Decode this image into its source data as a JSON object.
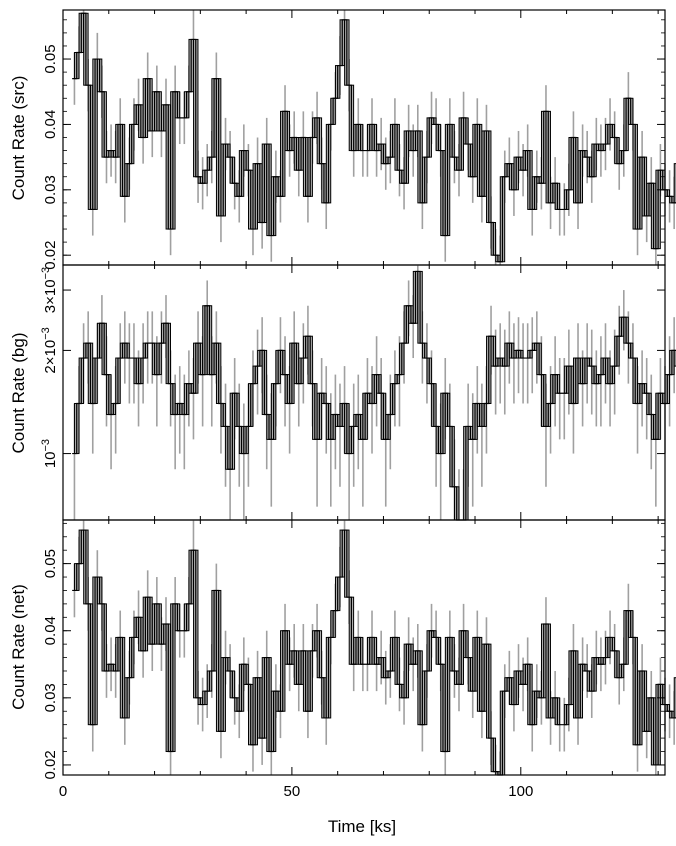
{
  "chart_data": [
    {
      "type": "line",
      "panel": "src",
      "ylabel": "Count Rate (src)",
      "xlabel": "",
      "xlim": [
        0,
        131.5
      ],
      "ylim": [
        0.0185,
        0.0575
      ],
      "y_scale": "linear",
      "yticks": [
        {
          "value": 0.02,
          "label": "0.02"
        },
        {
          "value": 0.03,
          "label": "0.03"
        },
        {
          "value": 0.04,
          "label": "0.04"
        },
        {
          "value": 0.05,
          "label": "0.05"
        }
      ],
      "bin_width": 1.0,
      "x_start": 2.0,
      "values": [
        0.047,
        0.051,
        0.057,
        0.046,
        0.027,
        0.05,
        0.045,
        0.035,
        0.036,
        0.035,
        0.04,
        0.029,
        0.034,
        0.04,
        0.043,
        0.038,
        0.047,
        0.039,
        0.045,
        0.039,
        0.043,
        0.024,
        0.045,
        0.041,
        0.041,
        0.045,
        0.053,
        0.032,
        0.031,
        0.033,
        0.035,
        0.047,
        0.026,
        0.037,
        0.035,
        0.031,
        0.029,
        0.036,
        0.033,
        0.024,
        0.034,
        0.025,
        0.037,
        0.023,
        0.032,
        0.029,
        0.042,
        0.036,
        0.038,
        0.033,
        0.038,
        0.029,
        0.038,
        0.041,
        0.034,
        0.028,
        0.04,
        0.044,
        0.049,
        0.056,
        0.046,
        0.036,
        0.04,
        0.036,
        0.036,
        0.04,
        0.036,
        0.037,
        0.034,
        0.035,
        0.04,
        0.033,
        0.031,
        0.039,
        0.036,
        0.039,
        0.028,
        0.035,
        0.041,
        0.04,
        0.036,
        0.023,
        0.04,
        0.035,
        0.033,
        0.041,
        0.037,
        0.032,
        0.04,
        0.029,
        0.039,
        0.025,
        0.02,
        0.019,
        0.032,
        0.034,
        0.03,
        0.035,
        0.033,
        0.036,
        0.027,
        0.032,
        0.031,
        0.042,
        0.028,
        0.031,
        0.027,
        0.027,
        0.03,
        0.038,
        0.028,
        0.036,
        0.035,
        0.032,
        0.037,
        0.036,
        0.037,
        0.04,
        0.038,
        0.034,
        0.036,
        0.044,
        0.04,
        0.024,
        0.035,
        0.026,
        0.031,
        0.021,
        0.033,
        0.03,
        0.029,
        0.028,
        0.034,
        0.031
      ],
      "errors": [
        0.004,
        0.004,
        0.0045,
        0.004,
        0.004,
        0.004,
        0.004,
        0.004,
        0.004,
        0.004,
        0.004,
        0.004,
        0.004,
        0.004,
        0.004,
        0.004,
        0.004,
        0.004,
        0.004,
        0.004,
        0.004,
        0.004,
        0.004,
        0.004,
        0.004,
        0.004,
        0.0045,
        0.004,
        0.004,
        0.004,
        0.004,
        0.004,
        0.004,
        0.004,
        0.004,
        0.004,
        0.004,
        0.004,
        0.004,
        0.004,
        0.004,
        0.004,
        0.004,
        0.004,
        0.004,
        0.004,
        0.004,
        0.004,
        0.004,
        0.004,
        0.004,
        0.004,
        0.004,
        0.004,
        0.004,
        0.004,
        0.004,
        0.004,
        0.0045,
        0.0045,
        0.004,
        0.004,
        0.004,
        0.004,
        0.004,
        0.004,
        0.004,
        0.004,
        0.004,
        0.004,
        0.004,
        0.004,
        0.004,
        0.004,
        0.004,
        0.004,
        0.004,
        0.004,
        0.004,
        0.004,
        0.004,
        0.004,
        0.004,
        0.004,
        0.004,
        0.004,
        0.004,
        0.004,
        0.004,
        0.004,
        0.004,
        0.004,
        0.004,
        0.004,
        0.004,
        0.004,
        0.004,
        0.004,
        0.004,
        0.004,
        0.004,
        0.004,
        0.004,
        0.004,
        0.004,
        0.004,
        0.004,
        0.004,
        0.004,
        0.004,
        0.004,
        0.004,
        0.004,
        0.004,
        0.004,
        0.004,
        0.004,
        0.004,
        0.004,
        0.004,
        0.004,
        0.004,
        0.004,
        0.004,
        0.004,
        0.004,
        0.004,
        0.004,
        0.004,
        0.004,
        0.004,
        0.004,
        0.004,
        0.004
      ],
      "line_color": "#000000",
      "fill_color": "#b0b0b0",
      "error_color": "#a0a0a0"
    },
    {
      "type": "line",
      "panel": "bg",
      "ylabel": "Count Rate (bg)",
      "xlabel": "",
      "xlim": [
        0,
        131.5
      ],
      "ylim": [
        0.00064,
        0.00355
      ],
      "y_scale": "log",
      "yticks": [
        {
          "value": 0.001,
          "label": "10",
          "exp": "−3"
        },
        {
          "value": 0.002,
          "label": "2×10",
          "exp": "−3"
        },
        {
          "value": 0.003,
          "label": "3×10",
          "exp": "−3"
        }
      ],
      "bin_width": 1.0,
      "x_start": 2.0,
      "values": [
        0.001,
        0.0014,
        0.0019,
        0.0021,
        0.0014,
        0.0019,
        0.0024,
        0.0017,
        0.0013,
        0.0014,
        0.0019,
        0.0021,
        0.0019,
        0.0019,
        0.0016,
        0.0019,
        0.0021,
        0.0021,
        0.0017,
        0.0021,
        0.0024,
        0.0016,
        0.0013,
        0.0014,
        0.0013,
        0.0016,
        0.0015,
        0.0021,
        0.0017,
        0.0027,
        0.0017,
        0.0021,
        0.0014,
        0.0012,
        0.0009,
        0.0015,
        0.0012,
        0.001,
        0.0012,
        0.0016,
        0.0018,
        0.002,
        0.0013,
        0.0011,
        0.0016,
        0.002,
        0.0017,
        0.0014,
        0.0021,
        0.0016,
        0.0019,
        0.0022,
        0.0016,
        0.0011,
        0.0015,
        0.0014,
        0.0011,
        0.0013,
        0.0012,
        0.0014,
        0.001,
        0.0012,
        0.0013,
        0.0011,
        0.0015,
        0.0014,
        0.0017,
        0.0015,
        0.0011,
        0.0013,
        0.0016,
        0.0017,
        0.0021,
        0.0027,
        0.0024,
        0.0034,
        0.0021,
        0.0019,
        0.0016,
        0.0012,
        0.001,
        0.0015,
        0.0012,
        0.0008,
        0.0006,
        0.0006,
        0.0012,
        0.0011,
        0.0014,
        0.0012,
        0.0014,
        0.0022,
        0.0018,
        0.0019,
        0.0018,
        0.0021,
        0.0019,
        0.002,
        0.0019,
        0.0019,
        0.002,
        0.0021,
        0.0017,
        0.0012,
        0.0014,
        0.0017,
        0.0015,
        0.0015,
        0.0018,
        0.0014,
        0.0019,
        0.0016,
        0.0019,
        0.0018,
        0.0016,
        0.0017,
        0.0019,
        0.0016,
        0.0018,
        0.0022,
        0.0025,
        0.0021,
        0.0019,
        0.0014,
        0.0016,
        0.0015,
        0.0013,
        0.0011,
        0.0015,
        0.0014,
        0.0017,
        0.002,
        0.0018
      ],
      "errors": [
        0.0004,
        0.0004,
        0.0005,
        0.0005,
        0.0004,
        0.0005,
        0.0005,
        0.0005,
        0.0004,
        0.0004,
        0.0005,
        0.0005,
        0.0005,
        0.0005,
        0.0004,
        0.0005,
        0.0005,
        0.0005,
        0.0005,
        0.0005,
        0.0005,
        0.0004,
        0.0004,
        0.0004,
        0.0004,
        0.0004,
        0.0004,
        0.0005,
        0.0005,
        0.0005,
        0.0005,
        0.0005,
        0.0004,
        0.0004,
        0.0003,
        0.0004,
        0.0004,
        0.0004,
        0.0004,
        0.0004,
        0.0005,
        0.0005,
        0.0004,
        0.0004,
        0.0004,
        0.0005,
        0.0005,
        0.0004,
        0.0005,
        0.0004,
        0.0005,
        0.0005,
        0.0004,
        0.0004,
        0.0004,
        0.0004,
        0.0004,
        0.0004,
        0.0004,
        0.0004,
        0.0004,
        0.0004,
        0.0004,
        0.0004,
        0.0004,
        0.0004,
        0.0005,
        0.0004,
        0.0004,
        0.0004,
        0.0004,
        0.0005,
        0.0005,
        0.0005,
        0.0005,
        0.0006,
        0.0005,
        0.0005,
        0.0004,
        0.0004,
        0.0004,
        0.0004,
        0.0004,
        0.0003,
        0.0003,
        0.0003,
        0.0004,
        0.0004,
        0.0004,
        0.0004,
        0.0004,
        0.0005,
        0.0005,
        0.0005,
        0.0005,
        0.0005,
        0.0005,
        0.0005,
        0.0005,
        0.0005,
        0.0005,
        0.0005,
        0.0005,
        0.0004,
        0.0004,
        0.0005,
        0.0004,
        0.0004,
        0.0005,
        0.0004,
        0.0005,
        0.0004,
        0.0005,
        0.0005,
        0.0004,
        0.0005,
        0.0005,
        0.0004,
        0.0005,
        0.0005,
        0.0005,
        0.0005,
        0.0005,
        0.0004,
        0.0004,
        0.0004,
        0.0004,
        0.0004,
        0.0004,
        0.0004,
        0.0005,
        0.0005,
        0.0005
      ],
      "line_color": "#000000",
      "fill_color": "#b0b0b0",
      "error_color": "#a0a0a0"
    },
    {
      "type": "line",
      "panel": "net",
      "ylabel": "Count Rate (net)",
      "xlabel": "Time [ks]",
      "xlim": [
        0,
        131.5
      ],
      "ylim": [
        0.0185,
        0.0565
      ],
      "y_scale": "linear",
      "yticks": [
        {
          "value": 0.02,
          "label": "0.02"
        },
        {
          "value": 0.03,
          "label": "0.03"
        },
        {
          "value": 0.04,
          "label": "0.04"
        },
        {
          "value": 0.05,
          "label": "0.05"
        }
      ],
      "xticks": [
        {
          "value": 0,
          "label": "0"
        },
        {
          "value": 50,
          "label": "50"
        },
        {
          "value": 100,
          "label": "100"
        }
      ],
      "bin_width": 1.0,
      "x_start": 2.0,
      "values": [
        0.046,
        0.05,
        0.055,
        0.044,
        0.026,
        0.048,
        0.044,
        0.034,
        0.035,
        0.034,
        0.039,
        0.027,
        0.033,
        0.039,
        0.042,
        0.037,
        0.045,
        0.038,
        0.044,
        0.038,
        0.041,
        0.022,
        0.044,
        0.04,
        0.04,
        0.044,
        0.052,
        0.03,
        0.029,
        0.031,
        0.034,
        0.046,
        0.025,
        0.036,
        0.034,
        0.03,
        0.028,
        0.035,
        0.032,
        0.023,
        0.033,
        0.024,
        0.036,
        0.022,
        0.031,
        0.028,
        0.04,
        0.035,
        0.037,
        0.032,
        0.037,
        0.028,
        0.037,
        0.04,
        0.033,
        0.027,
        0.039,
        0.043,
        0.048,
        0.055,
        0.045,
        0.035,
        0.039,
        0.035,
        0.035,
        0.039,
        0.035,
        0.036,
        0.033,
        0.034,
        0.039,
        0.032,
        0.03,
        0.038,
        0.035,
        0.037,
        0.026,
        0.034,
        0.04,
        0.039,
        0.035,
        0.022,
        0.039,
        0.034,
        0.032,
        0.04,
        0.036,
        0.031,
        0.039,
        0.028,
        0.038,
        0.024,
        0.019,
        0.018,
        0.031,
        0.033,
        0.029,
        0.034,
        0.032,
        0.035,
        0.026,
        0.031,
        0.03,
        0.041,
        0.027,
        0.03,
        0.026,
        0.026,
        0.029,
        0.037,
        0.027,
        0.035,
        0.034,
        0.031,
        0.036,
        0.035,
        0.036,
        0.039,
        0.037,
        0.033,
        0.035,
        0.043,
        0.039,
        0.023,
        0.034,
        0.025,
        0.03,
        0.02,
        0.032,
        0.029,
        0.028,
        0.027,
        0.033,
        0.029
      ],
      "errors": [
        0.004,
        0.004,
        0.0045,
        0.004,
        0.004,
        0.004,
        0.004,
        0.004,
        0.004,
        0.004,
        0.004,
        0.004,
        0.004,
        0.004,
        0.004,
        0.004,
        0.004,
        0.004,
        0.004,
        0.004,
        0.004,
        0.004,
        0.004,
        0.004,
        0.004,
        0.004,
        0.0045,
        0.004,
        0.004,
        0.004,
        0.004,
        0.004,
        0.004,
        0.004,
        0.004,
        0.004,
        0.004,
        0.004,
        0.004,
        0.004,
        0.004,
        0.004,
        0.004,
        0.004,
        0.004,
        0.004,
        0.004,
        0.004,
        0.004,
        0.004,
        0.004,
        0.004,
        0.004,
        0.004,
        0.004,
        0.004,
        0.004,
        0.004,
        0.0045,
        0.0045,
        0.004,
        0.004,
        0.004,
        0.004,
        0.004,
        0.004,
        0.004,
        0.004,
        0.004,
        0.004,
        0.004,
        0.004,
        0.004,
        0.004,
        0.004,
        0.004,
        0.004,
        0.004,
        0.004,
        0.004,
        0.004,
        0.004,
        0.004,
        0.004,
        0.004,
        0.004,
        0.004,
        0.004,
        0.004,
        0.004,
        0.004,
        0.004,
        0.004,
        0.004,
        0.004,
        0.004,
        0.004,
        0.004,
        0.004,
        0.004,
        0.004,
        0.004,
        0.004,
        0.004,
        0.004,
        0.004,
        0.004,
        0.004,
        0.004,
        0.004,
        0.004,
        0.004,
        0.004,
        0.004,
        0.004,
        0.004,
        0.004,
        0.004,
        0.004,
        0.004,
        0.004,
        0.004,
        0.004,
        0.004,
        0.004,
        0.004,
        0.004,
        0.004,
        0.004,
        0.004,
        0.004,
        0.004,
        0.004,
        0.004
      ],
      "line_color": "#000000",
      "fill_color": "#b0b0b0",
      "error_color": "#a0a0a0"
    }
  ]
}
